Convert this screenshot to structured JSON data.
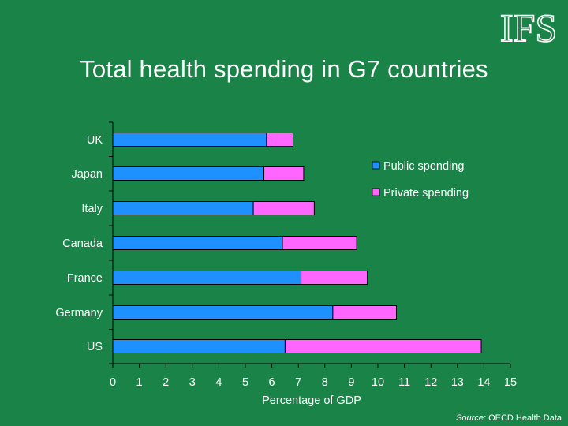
{
  "slide": {
    "logo_text": "IFS",
    "source_label": "Source:",
    "source_value": "OECD Health Data"
  },
  "chart_data": {
    "type": "bar",
    "orientation": "horizontal",
    "stacked": true,
    "title": "Total health spending in G7 countries",
    "xlabel": "Percentage of GDP",
    "ylabel": "",
    "xlim": [
      0,
      15
    ],
    "x_ticks": [
      "0",
      "1",
      "2",
      "3",
      "4",
      "5",
      "6",
      "7",
      "8",
      "9",
      "10",
      "11",
      "12",
      "13",
      "14",
      "15"
    ],
    "categories": [
      "UK",
      "Japan",
      "Italy",
      "Canada",
      "France",
      "Germany",
      "US"
    ],
    "series": [
      {
        "name": "Public spending",
        "color": "#1e90ff",
        "values": [
          5.8,
          5.7,
          5.3,
          6.4,
          7.1,
          8.3,
          6.5
        ]
      },
      {
        "name": "Private spending",
        "color": "#ff66ff",
        "values": [
          1.0,
          1.5,
          2.3,
          2.8,
          2.5,
          2.4,
          7.4
        ]
      }
    ],
    "grid": false,
    "legend_position": "right"
  }
}
